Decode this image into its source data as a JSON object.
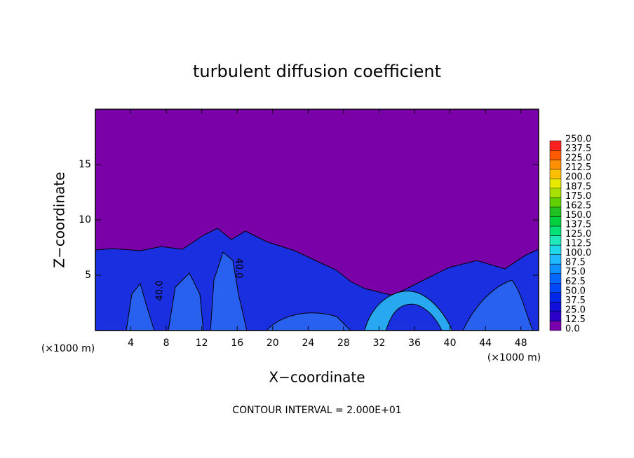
{
  "chart_data": {
    "type": "contour",
    "title": "turbulent diffusion coefficient",
    "xlabel": "X−coordinate",
    "ylabel": "Z−coordinate",
    "x_unit": "(×1000 m)",
    "x_unit_right": "(×1000 m)",
    "footnote": "CONTOUR INTERVAL = 2.000E+01",
    "xlim": [
      0,
      50
    ],
    "xticks": [
      4,
      8,
      12,
      16,
      20,
      24,
      28,
      32,
      36,
      40,
      44,
      48
    ],
    "ylim": [
      0,
      20
    ],
    "yticks": [
      5,
      10,
      15
    ],
    "contour_labels": [
      "40.0",
      "40.0"
    ],
    "colorbar": {
      "ticks": [
        {
          "value": 0,
          "label": "0.0"
        },
        {
          "value": 12.5,
          "label": "12.5"
        },
        {
          "value": 25,
          "label": "25.0"
        },
        {
          "value": 37.5,
          "label": "37.5"
        },
        {
          "value": 50,
          "label": "50.0"
        },
        {
          "value": 62.5,
          "label": "62.5"
        },
        {
          "value": 75,
          "label": "75.0"
        },
        {
          "value": 87.5,
          "label": "87.5"
        },
        {
          "value": 100,
          "label": "100.0"
        },
        {
          "value": 112.5,
          "label": "112.5"
        },
        {
          "value": 125,
          "label": "125.0"
        },
        {
          "value": 137.5,
          "label": "137.5"
        },
        {
          "value": 150,
          "label": "150.0"
        },
        {
          "value": 162.5,
          "label": "162.5"
        },
        {
          "value": 175,
          "label": "175.0"
        },
        {
          "value": 187.5,
          "label": "187.5"
        },
        {
          "value": 200,
          "label": "200.0"
        },
        {
          "value": 212.5,
          "label": "212.5"
        },
        {
          "value": 225,
          "label": "225.0"
        },
        {
          "value": 237.5,
          "label": "237.5"
        },
        {
          "value": 250,
          "label": "250.0"
        }
      ],
      "colors": [
        "#7800aa",
        "#2a00c8",
        "#1010d8",
        "#0028e8",
        "#0048f8",
        "#0068ff",
        "#1090ff",
        "#20b8ff",
        "#20d8e8",
        "#20e8b8",
        "#00e078",
        "#00d040",
        "#20c020",
        "#60d000",
        "#a8e000",
        "#e8e800",
        "#ffc000",
        "#ff9000",
        "#ff5a00",
        "#ff2020"
      ]
    }
  }
}
